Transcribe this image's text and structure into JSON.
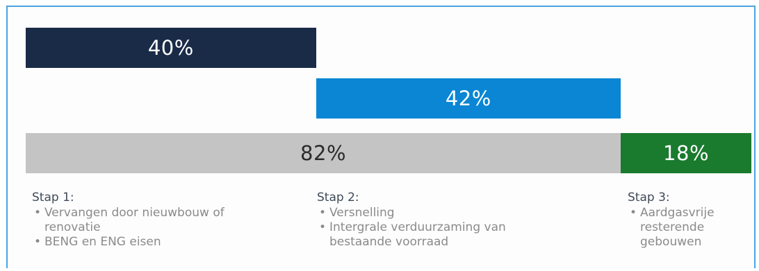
{
  "chart_data": {
    "type": "bar",
    "title": "",
    "xlabel": "",
    "ylabel": "",
    "xlim": [
      0,
      100
    ],
    "units": "%",
    "rows": [
      {
        "segments": [
          {
            "label": "40%",
            "start": 0,
            "value": 40,
            "color": "#1a2b47"
          }
        ]
      },
      {
        "segments": [
          {
            "label": "42%",
            "start": 40,
            "value": 42,
            "color": "#0a86d4"
          }
        ]
      },
      {
        "segments": [
          {
            "label": "82%",
            "start": 0,
            "value": 82,
            "color": "#c4c4c4"
          },
          {
            "label": "18%",
            "start": 82,
            "value": 18,
            "color": "#1a7a2e"
          }
        ]
      }
    ]
  },
  "steps": [
    {
      "title": "Stap 1:",
      "items": [
        "Vervangen door nieuwbouw of\nrenovatie",
        "BENG en ENG eisen"
      ]
    },
    {
      "title": "Stap 2:",
      "items": [
        "Versnelling",
        "Intergrale verduurzaming van\nbestaande voorraad"
      ]
    },
    {
      "title": "Stap 3:",
      "items": [
        "Aardgasvrije\nresterende\ngebouwen"
      ]
    }
  ]
}
